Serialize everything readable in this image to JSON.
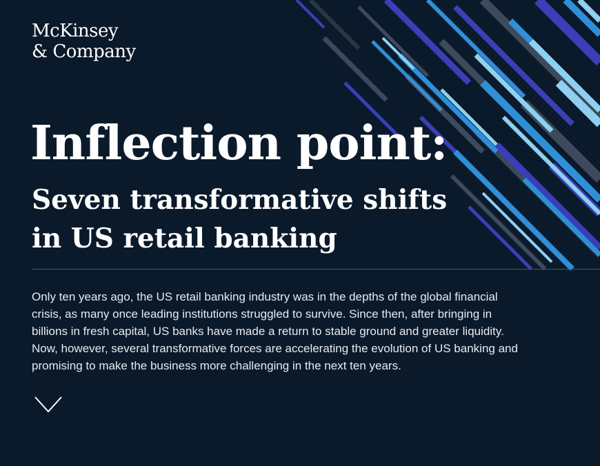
{
  "brand": {
    "logo_line1": "McKinsey",
    "logo_line2": "& Company"
  },
  "hero": {
    "title": "Inflection point:",
    "subtitle_line1": "Seven transformative shifts",
    "subtitle_line2": "in US retail banking"
  },
  "intro": {
    "text": "Only ten years ago, the US retail banking industry was in the depths of the global financial crisis, as many once leading institutions struggled to survive. Since then, after bringing in billions in fresh capital, US banks have made a return to stable ground and greater liquidity. Now, however, several transformative forces are accelerating the evolution of US banking and promising to make the business more challenging in the next ten years."
  },
  "controls": {
    "scroll_icon": "chevron-down-icon"
  },
  "colors": {
    "background": "#0b1a2b",
    "text": "#ffffff",
    "divider": "#4a5868",
    "stripe_light": "#8fd0f0",
    "stripe_blue": "#2f8fd8",
    "stripe_indigo": "#3a3fb8",
    "stripe_gray": "#3c4a5c"
  }
}
